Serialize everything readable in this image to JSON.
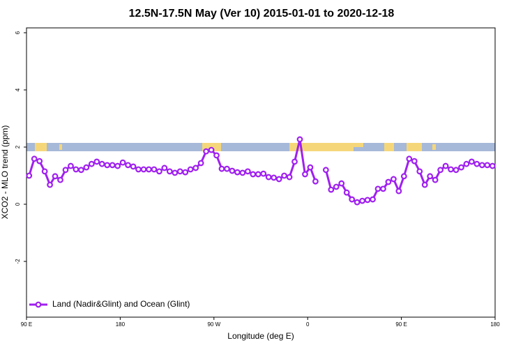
{
  "chart_data": {
    "type": "line",
    "title": "12.5N-17.5N May (Ver 10)   2015-01-01 to 2020-12-18",
    "x_label": "Longitude (deg E)",
    "y_label": "XCO2 - MLO trend (ppm)",
    "xlim": [
      90,
      540
    ],
    "ylim": [
      -3.95,
      6.17
    ],
    "xticks": [
      {
        "value": 90,
        "label": "90 E"
      },
      180,
      {
        "value": 270,
        "label": "90 W"
      },
      {
        "value": 360,
        "label": "0"
      },
      {
        "value": 450,
        "label": "90 E"
      },
      {
        "value": 540,
        "label": "180"
      }
    ],
    "yticks": [
      -2,
      0,
      2,
      4,
      6
    ],
    "legend": "bottom-left",
    "x": [
      92.5,
      97.5,
      102.5,
      107.5,
      112.5,
      117.5,
      122.5,
      127.5,
      132.5,
      137.5,
      142.5,
      147.5,
      152.5,
      157.5,
      162.5,
      167.5,
      172.5,
      177.5,
      182.5,
      187.5,
      192.5,
      197.5,
      202.5,
      207.5,
      212.5,
      217.5,
      222.5,
      227.5,
      232.5,
      237.5,
      242.5,
      247.5,
      252.5,
      257.5,
      262.5,
      267.5,
      272.5,
      277.5,
      282.5,
      287.5,
      292.5,
      297.5,
      302.5,
      307.5,
      312.5,
      317.5,
      322.5,
      327.5,
      332.5,
      337.5,
      342.5,
      347.5,
      352.5,
      357.5,
      362.5,
      367.5,
      372.5,
      377.5,
      382.5,
      387.5,
      392.5,
      397.5,
      402.5,
      407.5,
      412.5,
      417.5,
      422.5,
      427.5,
      432.5,
      437.5,
      442.5,
      447.5,
      452.5,
      457.5,
      462.5,
      467.5,
      472.5,
      477.5,
      482.5,
      487.5,
      492.5,
      497.5,
      502.5,
      507.5,
      512.5,
      517.5,
      522.5,
      527.5,
      532.5,
      537.5
    ],
    "series": [
      {
        "name": "Land (Nadir&Glint) and Ocean (Glint)",
        "color": "#a020f0",
        "values": [
          1.0,
          1.59,
          1.51,
          1.15,
          0.68,
          0.98,
          0.85,
          1.2,
          1.34,
          1.22,
          1.2,
          1.29,
          1.41,
          1.49,
          1.41,
          1.37,
          1.37,
          1.34,
          1.46,
          1.37,
          1.32,
          1.22,
          1.22,
          1.22,
          1.22,
          1.15,
          1.27,
          1.15,
          1.1,
          1.15,
          1.12,
          1.22,
          1.27,
          1.44,
          1.85,
          1.9,
          1.71,
          1.24,
          1.24,
          1.17,
          1.12,
          1.1,
          1.15,
          1.05,
          1.05,
          1.07,
          0.95,
          0.93,
          0.88,
          1.0,
          0.95,
          1.49,
          2.27,
          1.05,
          1.29,
          0.8,
          null,
          1.2,
          0.51,
          0.61,
          0.73,
          0.41,
          0.17,
          0.07,
          0.12,
          0.15,
          0.17,
          0.54,
          0.54,
          0.78,
          0.88,
          0.46,
          0.98,
          1.59,
          1.51,
          1.15,
          0.68,
          0.98,
          0.85,
          1.2,
          1.34,
          1.22,
          1.2,
          1.29,
          1.41,
          1.49,
          1.41,
          1.37,
          1.37,
          1.34
        ]
      }
    ]
  }
}
